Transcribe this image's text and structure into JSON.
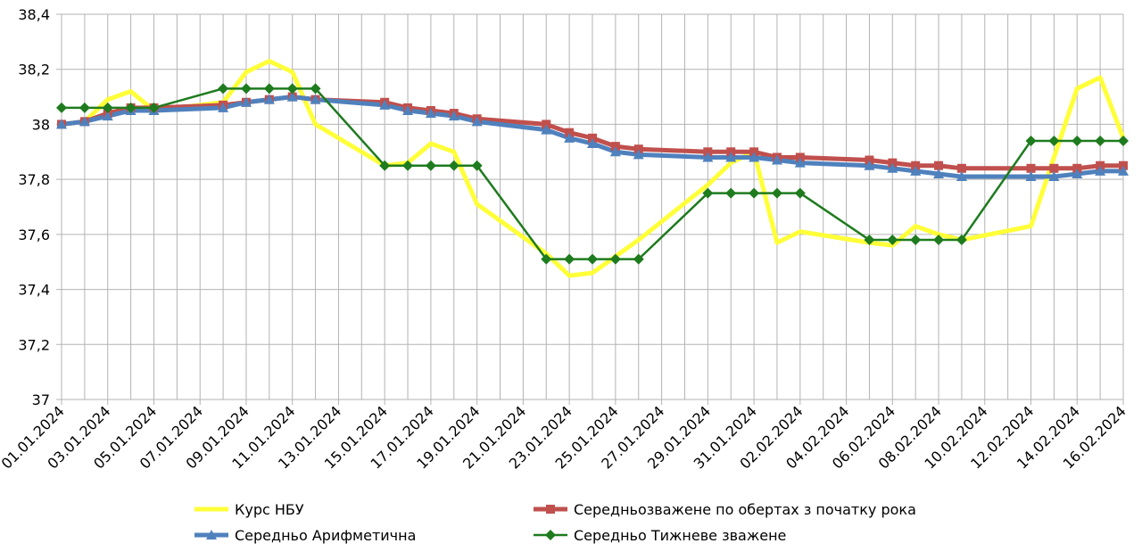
{
  "chart_data": {
    "type": "line",
    "x": [
      "01.01.2024",
      "02.01.2024",
      "03.01.2024",
      "04.01.2024",
      "05.01.2024",
      "08.01.2024",
      "09.01.2024",
      "10.01.2024",
      "11.01.2024",
      "12.01.2024",
      "15.01.2024",
      "16.01.2024",
      "17.01.2024",
      "18.01.2024",
      "19.01.2024",
      "22.01.2024",
      "23.01.2024",
      "24.01.2024",
      "25.01.2024",
      "26.01.2024",
      "29.01.2024",
      "30.01.2024",
      "31.01.2024",
      "01.02.2024",
      "02.02.2024",
      "05.02.2024",
      "06.02.2024",
      "07.02.2024",
      "08.02.2024",
      "09.02.2024",
      "12.02.2024",
      "13.02.2024",
      "14.02.2024",
      "15.02.2024",
      "16.02.2024"
    ],
    "xlim": [
      "01.01.2024",
      "16.02.2024"
    ],
    "xticks": [
      "01.01.2024",
      "03.01.2024",
      "05.01.2024",
      "07.01.2024",
      "09.01.2024",
      "11.01.2024",
      "13.01.2024",
      "15.01.2024",
      "17.01.2024",
      "19.01.2024",
      "21.01.2024",
      "23.01.2024",
      "25.01.2024",
      "27.01.2024",
      "29.01.2024",
      "31.01.2024",
      "02.02.2024",
      "04.02.2024",
      "06.02.2024",
      "08.02.2024",
      "10.02.2024",
      "12.02.2024",
      "14.02.2024",
      "16.02.2024"
    ],
    "ylim": [
      37,
      38.4
    ],
    "yticks": [
      37,
      {
        "value": 37.2,
        "label": "37,2"
      },
      {
        "value": 37.4,
        "label": "37,4"
      },
      {
        "value": 37.6,
        "label": "37,6"
      },
      {
        "value": 37.8,
        "label": "37,8"
      },
      38,
      {
        "value": 38.2,
        "label": "38,2"
      },
      {
        "value": 38.4,
        "label": "38,4"
      }
    ],
    "grid": true,
    "series": [
      {
        "name": "Курс НБУ",
        "color": "#ffff38",
        "values": [
          38.0,
          38.01,
          38.09,
          38.12,
          38.05,
          38.08,
          38.19,
          38.23,
          38.19,
          38.0,
          37.85,
          37.86,
          37.93,
          37.9,
          37.71,
          37.53,
          37.45,
          37.46,
          37.52,
          37.58,
          37.78,
          37.86,
          37.9,
          37.57,
          37.61,
          37.57,
          37.56,
          37.63,
          37.6,
          37.58,
          37.63,
          37.88,
          38.13,
          38.17,
          37.95
        ]
      },
      {
        "name": "Середньозважене по обертах з початку рока",
        "color": "#c0504d",
        "marker": "square",
        "values": [
          38.0,
          38.01,
          38.04,
          38.06,
          38.06,
          38.07,
          38.08,
          38.09,
          38.1,
          38.09,
          38.08,
          38.06,
          38.05,
          38.04,
          38.02,
          38.0,
          37.97,
          37.95,
          37.92,
          37.91,
          37.9,
          37.9,
          37.9,
          37.88,
          37.88,
          37.87,
          37.86,
          37.85,
          37.85,
          37.84,
          37.84,
          37.84,
          37.84,
          37.85,
          37.85
        ]
      },
      {
        "name": "Середньо Арифметична",
        "color": "#4f81bd",
        "marker": "triangle",
        "values": [
          38.0,
          38.01,
          38.03,
          38.05,
          38.05,
          38.06,
          38.08,
          38.09,
          38.1,
          38.09,
          38.07,
          38.05,
          38.04,
          38.03,
          38.01,
          37.98,
          37.95,
          37.93,
          37.9,
          37.89,
          37.88,
          37.88,
          37.88,
          37.87,
          37.86,
          37.85,
          37.84,
          37.83,
          37.82,
          37.81,
          37.81,
          37.81,
          37.82,
          37.83,
          37.83
        ]
      },
      {
        "name": "Середньо Тижневе зважене",
        "color": "#1e7b1e",
        "marker": "diamond",
        "values": [
          38.06,
          38.06,
          38.06,
          38.06,
          38.06,
          38.13,
          38.13,
          38.13,
          38.13,
          38.13,
          37.85,
          37.85,
          37.85,
          37.85,
          37.85,
          37.51,
          37.51,
          37.51,
          37.51,
          37.51,
          37.75,
          37.75,
          37.75,
          37.75,
          37.75,
          37.58,
          37.58,
          37.58,
          37.58,
          37.58,
          37.94,
          37.94,
          37.94,
          37.94,
          37.94
        ]
      }
    ]
  }
}
